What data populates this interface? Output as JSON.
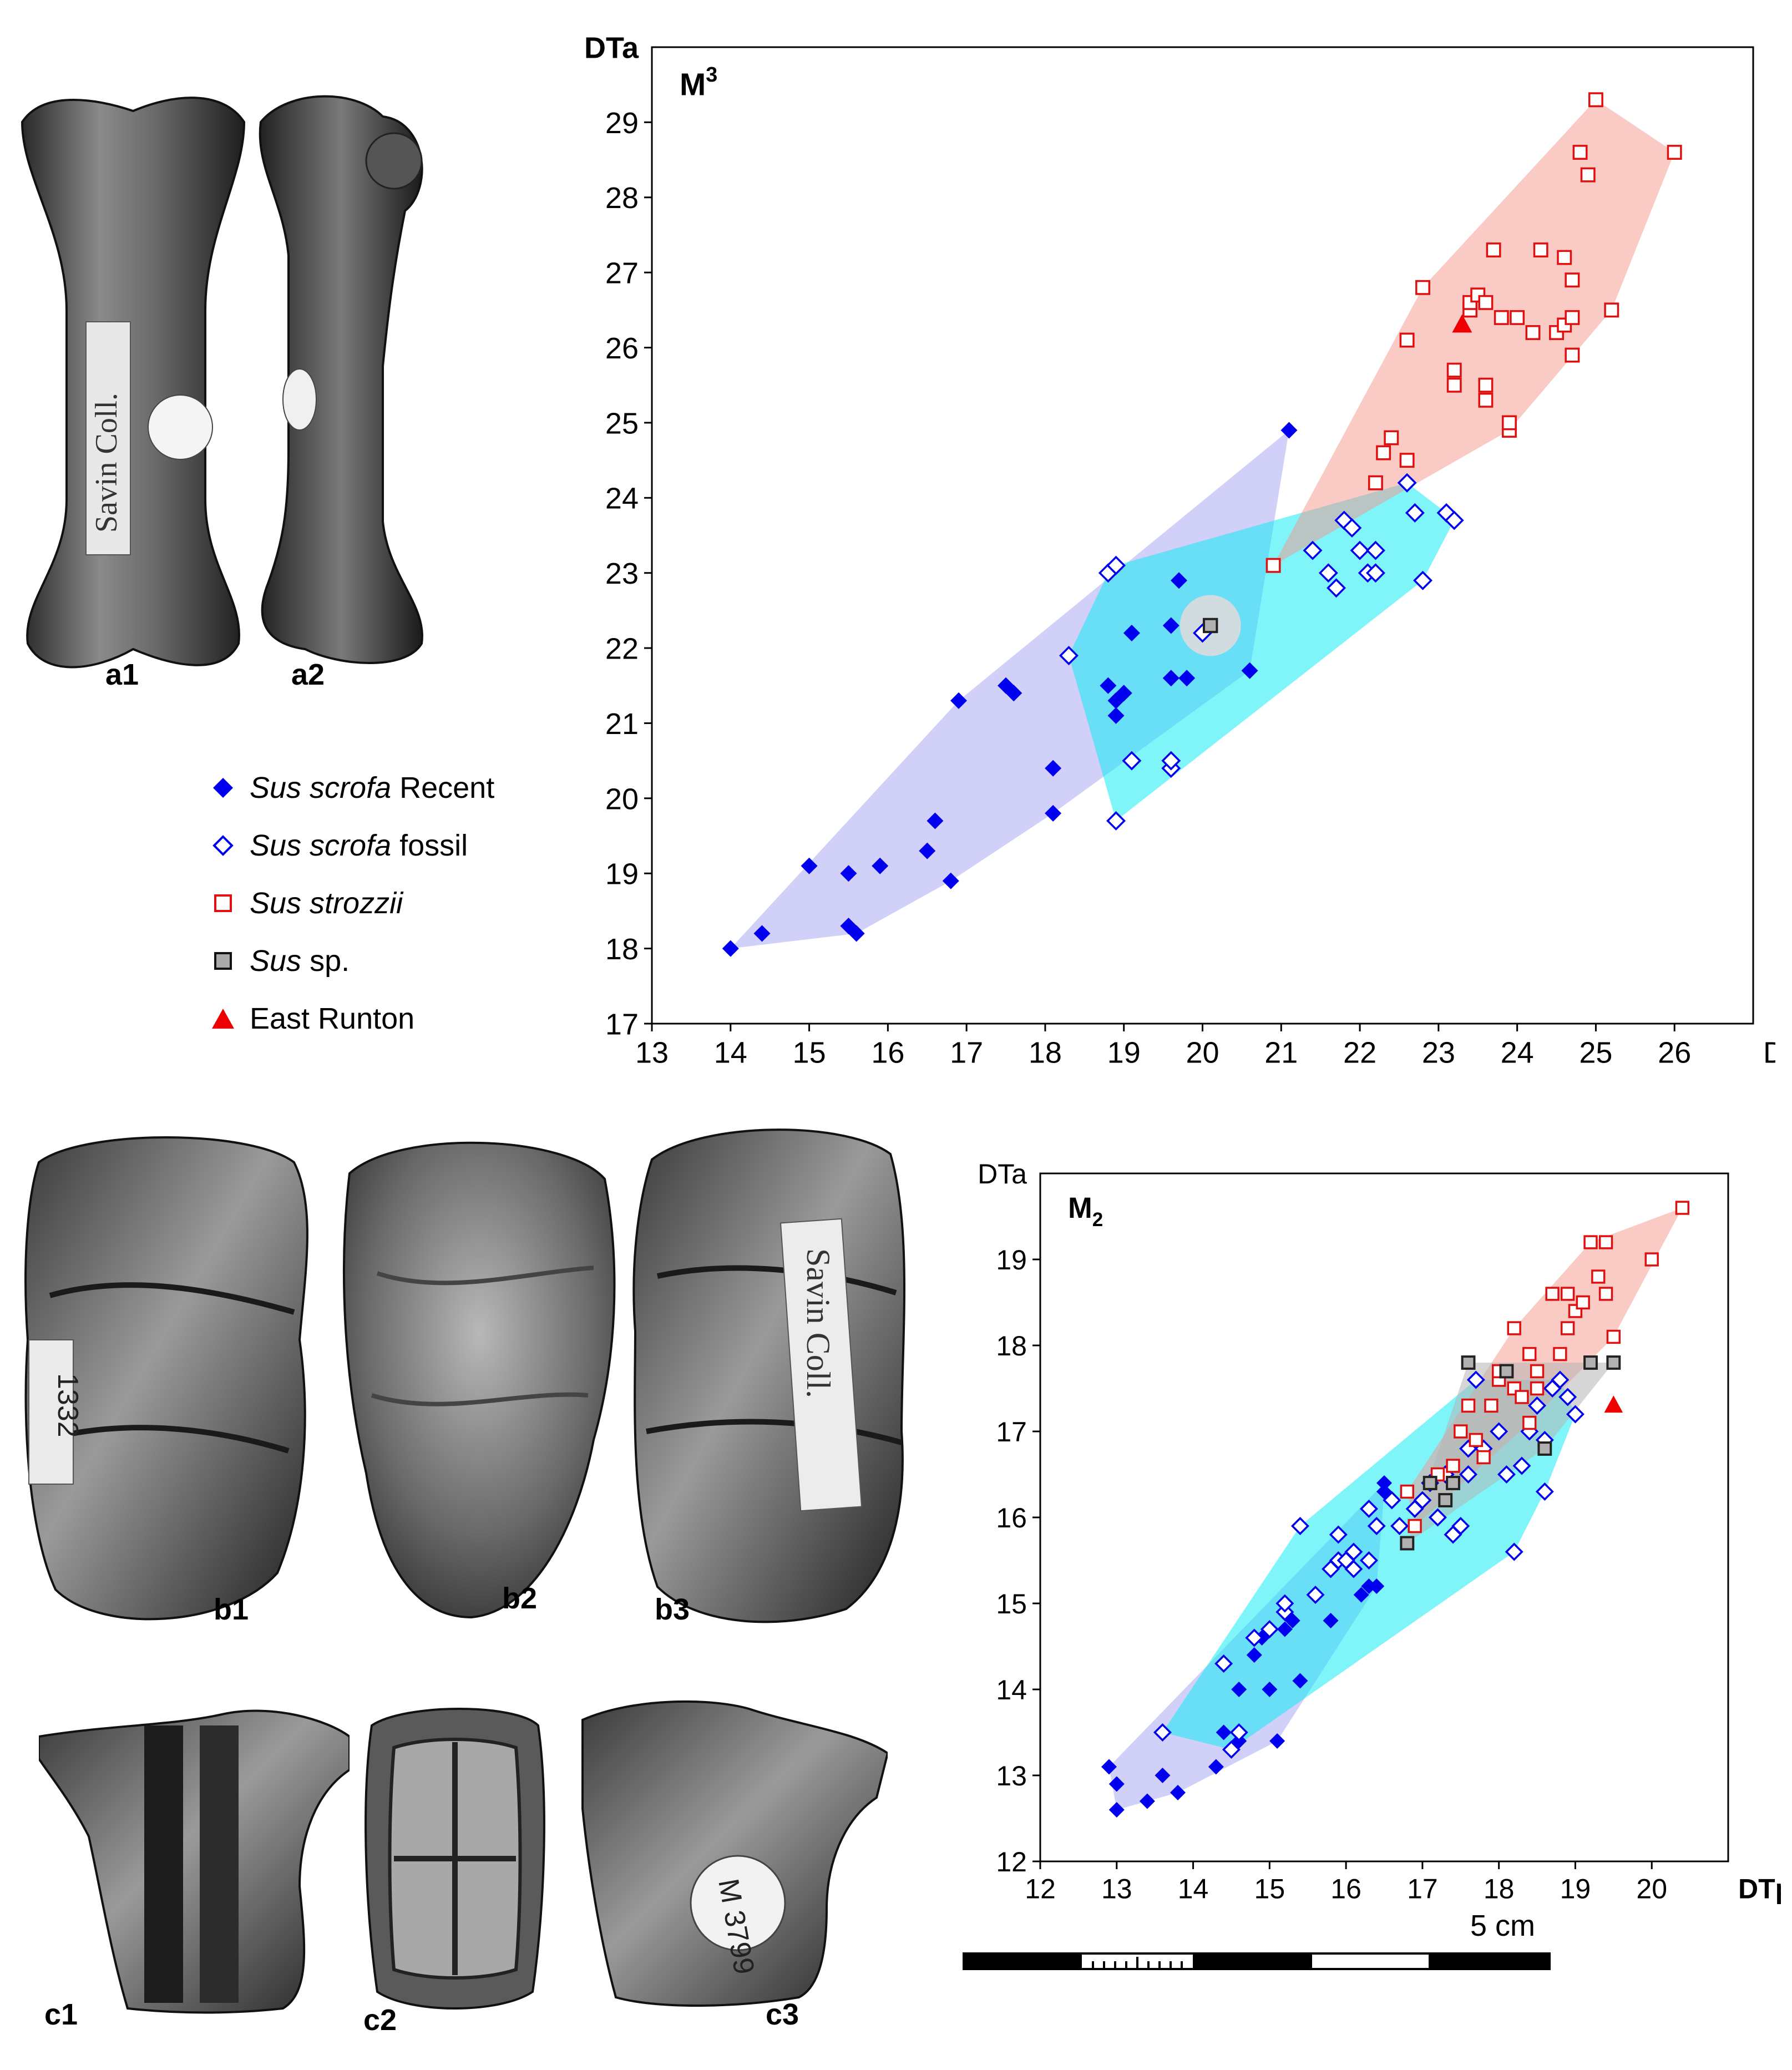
{
  "photos": {
    "a1": "a1",
    "a2": "a2",
    "b1": "b1",
    "b2": "b2",
    "b3": "b3",
    "c1": "c1",
    "c2": "c2",
    "c3": "c3",
    "collection_label": "Savin Coll.",
    "specimen_label_b": "1332",
    "specimen_label_c": "M 3799"
  },
  "legend": {
    "items": [
      {
        "marker": "diamond-filled",
        "italic": "Sus scrofa",
        "rest": " Recent",
        "color": "#0000ee"
      },
      {
        "marker": "diamond-open",
        "italic": "Sus scrofa",
        "rest": " fossil",
        "color": "#0000ee"
      },
      {
        "marker": "square-open",
        "italic": "Sus strozzii",
        "rest": "",
        "color": "#e01010"
      },
      {
        "marker": "square-grey",
        "italic": "Sus",
        "rest": " sp.",
        "color": "#222222"
      },
      {
        "marker": "triangle-filled",
        "italic": "",
        "rest": "East Runton",
        "color": "#ee0000"
      }
    ]
  },
  "scale_bar": {
    "label": "5 cm"
  },
  "chart_data": [
    {
      "type": "scatter",
      "title": "M3",
      "xlabel": "DTp",
      "ylabel": "DTa",
      "xlim": [
        13,
        27
      ],
      "ylim": [
        17,
        30
      ],
      "xticks": [
        13,
        14,
        15,
        16,
        17,
        18,
        19,
        20,
        21,
        22,
        23,
        24,
        25,
        26
      ],
      "yticks": [
        17,
        18,
        19,
        20,
        21,
        22,
        23,
        24,
        25,
        26,
        27,
        28,
        29
      ],
      "series": [
        {
          "name": "Sus scrofa Recent",
          "marker": "diamond-filled",
          "color": "#0000ee",
          "points": [
            [
              14.0,
              18.0
            ],
            [
              14.4,
              18.2
            ],
            [
              15.0,
              19.1
            ],
            [
              15.5,
              19.0
            ],
            [
              15.5,
              18.3
            ],
            [
              15.6,
              18.2
            ],
            [
              15.9,
              19.1
            ],
            [
              16.5,
              19.3
            ],
            [
              16.6,
              19.7
            ],
            [
              16.8,
              18.9
            ],
            [
              16.9,
              21.3
            ],
            [
              17.5,
              21.5
            ],
            [
              17.6,
              21.4
            ],
            [
              18.1,
              20.4
            ],
            [
              18.1,
              19.8
            ],
            [
              18.8,
              21.5
            ],
            [
              18.9,
              21.1
            ],
            [
              18.9,
              21.3
            ],
            [
              19.0,
              21.4
            ],
            [
              19.1,
              22.2
            ],
            [
              19.6,
              22.3
            ],
            [
              19.6,
              21.6
            ],
            [
              19.8,
              21.6
            ],
            [
              19.7,
              22.9
            ],
            [
              20.6,
              21.7
            ],
            [
              21.1,
              24.9
            ]
          ]
        },
        {
          "name": "Sus scrofa fossil",
          "marker": "diamond-open",
          "color": "#0000ee",
          "points": [
            [
              18.3,
              21.9
            ],
            [
              18.8,
              23.0
            ],
            [
              18.9,
              23.1
            ],
            [
              18.9,
              19.7
            ],
            [
              19.1,
              20.5
            ],
            [
              19.6,
              20.4
            ],
            [
              19.6,
              20.5
            ],
            [
              20.0,
              22.2
            ],
            [
              21.4,
              23.3
            ],
            [
              21.6,
              23.0
            ],
            [
              21.7,
              22.8
            ],
            [
              21.8,
              23.7
            ],
            [
              21.9,
              23.6
            ],
            [
              22.0,
              23.3
            ],
            [
              22.1,
              23.0
            ],
            [
              22.2,
              23.3
            ],
            [
              22.2,
              23.0
            ],
            [
              22.6,
              24.2
            ],
            [
              22.7,
              23.8
            ],
            [
              22.8,
              22.9
            ],
            [
              23.1,
              23.8
            ],
            [
              23.2,
              23.7
            ]
          ]
        },
        {
          "name": "Sus strozzii",
          "marker": "square-open",
          "color": "#e01010",
          "points": [
            [
              20.9,
              23.1
            ],
            [
              22.2,
              24.2
            ],
            [
              22.3,
              24.6
            ],
            [
              22.4,
              24.8
            ],
            [
              22.6,
              24.5
            ],
            [
              22.6,
              26.1
            ],
            [
              22.8,
              26.8
            ],
            [
              23.2,
              25.5
            ],
            [
              23.2,
              25.7
            ],
            [
              23.4,
              26.5
            ],
            [
              23.4,
              26.6
            ],
            [
              23.5,
              26.7
            ],
            [
              23.6,
              26.6
            ],
            [
              23.6,
              25.5
            ],
            [
              23.6,
              25.3
            ],
            [
              23.7,
              27.3
            ],
            [
              23.8,
              26.4
            ],
            [
              23.9,
              24.9
            ],
            [
              23.9,
              25.0
            ],
            [
              24.0,
              26.4
            ],
            [
              24.2,
              26.2
            ],
            [
              24.3,
              27.3
            ],
            [
              24.5,
              26.2
            ],
            [
              24.6,
              27.2
            ],
            [
              24.6,
              26.3
            ],
            [
              24.7,
              25.9
            ],
            [
              24.7,
              26.9
            ],
            [
              24.7,
              26.4
            ],
            [
              24.8,
              28.6
            ],
            [
              24.9,
              28.3
            ],
            [
              25.0,
              29.3
            ],
            [
              25.2,
              26.5
            ],
            [
              26.0,
              28.6
            ]
          ]
        },
        {
          "name": "Sus sp.",
          "marker": "square-grey",
          "color": "#222222",
          "points": [
            [
              20.1,
              22.3
            ]
          ]
        },
        {
          "name": "East Runton",
          "marker": "triangle-filled",
          "color": "#ee0000",
          "points": [
            [
              23.3,
              26.3
            ]
          ]
        }
      ]
    },
    {
      "type": "scatter",
      "title": "M2",
      "xlabel": "DTp",
      "ylabel": "DTa",
      "xlim": [
        12,
        21
      ],
      "ylim": [
        12,
        20
      ],
      "xticks": [
        12,
        13,
        14,
        15,
        16,
        17,
        18,
        19,
        20
      ],
      "yticks": [
        12,
        13,
        14,
        15,
        16,
        17,
        18,
        19
      ],
      "series": [
        {
          "name": "Sus scrofa Recent",
          "marker": "diamond-filled",
          "color": "#0000ee",
          "points": [
            [
              12.9,
              13.1
            ],
            [
              13.0,
              12.9
            ],
            [
              13.0,
              12.6
            ],
            [
              13.4,
              12.7
            ],
            [
              13.6,
              13.0
            ],
            [
              13.8,
              12.8
            ],
            [
              14.3,
              13.1
            ],
            [
              14.4,
              13.5
            ],
            [
              14.6,
              14.0
            ],
            [
              14.6,
              13.4
            ],
            [
              14.8,
              14.4
            ],
            [
              14.9,
              14.6
            ],
            [
              15.0,
              14.0
            ],
            [
              15.1,
              13.4
            ],
            [
              15.2,
              14.7
            ],
            [
              15.3,
              14.8
            ],
            [
              15.4,
              14.1
            ],
            [
              15.8,
              14.8
            ],
            [
              16.2,
              15.1
            ],
            [
              16.3,
              15.2
            ],
            [
              16.4,
              15.2
            ],
            [
              16.5,
              16.3
            ],
            [
              16.5,
              16.4
            ]
          ]
        },
        {
          "name": "Sus scrofa fossil",
          "marker": "diamond-open",
          "color": "#0000ee",
          "points": [
            [
              13.6,
              13.5
            ],
            [
              14.4,
              14.3
            ],
            [
              14.5,
              13.3
            ],
            [
              14.6,
              13.5
            ],
            [
              14.8,
              14.6
            ],
            [
              15.0,
              14.7
            ],
            [
              15.2,
              14.9
            ],
            [
              15.2,
              15.0
            ],
            [
              15.4,
              15.9
            ],
            [
              15.6,
              15.1
            ],
            [
              15.8,
              15.4
            ],
            [
              15.9,
              15.5
            ],
            [
              15.9,
              15.8
            ],
            [
              16.0,
              15.5
            ],
            [
              16.1,
              15.4
            ],
            [
              16.1,
              15.6
            ],
            [
              16.3,
              15.5
            ],
            [
              16.3,
              16.1
            ],
            [
              16.4,
              15.9
            ],
            [
              16.6,
              16.2
            ],
            [
              16.7,
              15.9
            ],
            [
              16.9,
              16.1
            ],
            [
              17.0,
              16.2
            ],
            [
              17.1,
              16.4
            ],
            [
              17.2,
              16.0
            ],
            [
              17.3,
              16.5
            ],
            [
              17.4,
              15.8
            ],
            [
              17.5,
              15.9
            ],
            [
              17.6,
              16.5
            ],
            [
              17.6,
              16.8
            ],
            [
              17.7,
              17.6
            ],
            [
              17.8,
              16.8
            ],
            [
              18.0,
              17.0
            ],
            [
              18.1,
              16.5
            ],
            [
              18.2,
              15.6
            ],
            [
              18.3,
              16.6
            ],
            [
              18.4,
              17.0
            ],
            [
              18.5,
              17.3
            ],
            [
              18.6,
              16.9
            ],
            [
              18.6,
              16.3
            ],
            [
              18.7,
              17.5
            ],
            [
              18.8,
              17.6
            ],
            [
              18.9,
              17.4
            ],
            [
              19.0,
              17.2
            ]
          ]
        },
        {
          "name": "Sus strozzii",
          "marker": "square-open",
          "color": "#e01010",
          "points": [
            [
              16.8,
              16.3
            ],
            [
              16.9,
              15.9
            ],
            [
              17.2,
              16.5
            ],
            [
              17.4,
              16.6
            ],
            [
              17.5,
              17.0
            ],
            [
              17.6,
              17.3
            ],
            [
              17.7,
              16.9
            ],
            [
              17.8,
              16.7
            ],
            [
              17.9,
              17.3
            ],
            [
              18.0,
              17.6
            ],
            [
              18.0,
              17.7
            ],
            [
              18.2,
              17.5
            ],
            [
              18.2,
              18.2
            ],
            [
              18.3,
              17.4
            ],
            [
              18.4,
              17.1
            ],
            [
              18.4,
              17.9
            ],
            [
              18.5,
              17.7
            ],
            [
              18.5,
              17.5
            ],
            [
              18.7,
              18.6
            ],
            [
              18.8,
              17.9
            ],
            [
              18.9,
              18.2
            ],
            [
              18.9,
              18.6
            ],
            [
              19.0,
              18.4
            ],
            [
              19.1,
              18.5
            ],
            [
              19.2,
              19.2
            ],
            [
              19.3,
              18.8
            ],
            [
              19.4,
              19.2
            ],
            [
              19.4,
              18.6
            ],
            [
              19.5,
              18.1
            ],
            [
              20.0,
              19.0
            ],
            [
              20.4,
              19.6
            ]
          ]
        },
        {
          "name": "Sus sp.",
          "marker": "square-grey",
          "color": "#222222",
          "points": [
            [
              16.8,
              15.7
            ],
            [
              17.1,
              16.4
            ],
            [
              17.3,
              16.2
            ],
            [
              17.4,
              16.4
            ],
            [
              17.6,
              17.8
            ],
            [
              18.1,
              17.7
            ],
            [
              18.6,
              16.8
            ],
            [
              19.2,
              17.8
            ],
            [
              19.5,
              17.8
            ]
          ]
        },
        {
          "name": "East Runton",
          "marker": "triangle-filled",
          "color": "#ee0000",
          "points": [
            [
              19.5,
              17.3
            ]
          ]
        }
      ]
    }
  ]
}
